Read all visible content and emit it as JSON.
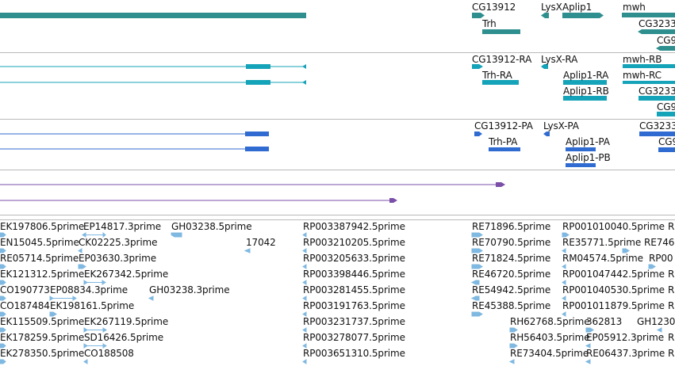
{
  "colors": {
    "gene": "#2f8f8f",
    "transcript": "#14a3b8",
    "protein": "#2f6bd1",
    "alignment": "#7b4fa8",
    "est": "#7fb8e0",
    "separator": "#b9b9b9"
  },
  "gene_track": {
    "labels": [
      "CG13912",
      "LysX",
      "Aplip1",
      "mwh",
      "Trh",
      "CG3233",
      "CG9"
    ]
  },
  "transcript_track": {
    "labels": [
      "CG13912-RA",
      "LysX-RA",
      "mwh-RB",
      "Trh-RA",
      "Aplip1-RA",
      "mwh-RC",
      "Aplip1-RB",
      "CG3233",
      "CG9"
    ]
  },
  "protein_track": {
    "labels": [
      "CG13912-PA",
      "LysX-PA",
      "CG3233",
      "Trh-PA",
      "Aplip1-PA",
      "CG9",
      "Aplip1-PB"
    ]
  },
  "est_track": {
    "labels": [
      "EK197806.5prime",
      "EP14817.3prime",
      "GH03238.5prime",
      "RP003387942.5prime",
      "RE71896.5prime",
      "RP001010040.5prime",
      "R",
      "EN15045.5prime",
      "CK02225.3prime",
      "17042",
      "RP003210205.5prime",
      "RE70790.5prime",
      "RE35771.5prime",
      "RE746",
      "RE05714.5prime",
      "EP03630.3prime",
      "RP003205633.5prime",
      "RE71824.5prime",
      "RM04574.5prime",
      "RP00",
      "EK121312.5prime",
      "EK267342.5prime",
      "RP003398446.5prime",
      "RE46720.5prime",
      "RP001047442.5prime",
      "R",
      "CO190773",
      "EP08834.3prime",
      "GH03238.3prime",
      "RP003281455.5prime",
      "RE54942.5prime",
      "RP001040530.5prime",
      "R",
      "CO187484",
      "EK198161.5prime",
      "RP003191763.5prime",
      "RE45388.5prime",
      "RP001011879.5prime",
      "R",
      "EK115509.5prime",
      "EK267119.5prime",
      "RP003231737.5prime",
      "RH62768.5prime",
      "362813",
      "GH1230",
      "EK178259.5prime",
      "SD16426.5prime",
      "RP003278077.5prime",
      "RH56403.5prime",
      "EP05912.3prime",
      "R",
      "EK278350.5prime",
      "CO188508",
      "RP003651310.5prime",
      "RE73404.5prime",
      "RE06437.3prime",
      "R"
    ]
  }
}
